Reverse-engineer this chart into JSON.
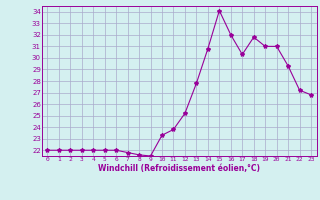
{
  "x": [
    0,
    1,
    2,
    3,
    4,
    5,
    6,
    7,
    8,
    9,
    10,
    11,
    12,
    13,
    14,
    15,
    16,
    17,
    18,
    19,
    20,
    21,
    22,
    23
  ],
  "y": [
    22,
    22,
    22,
    22,
    22,
    22,
    22,
    21.8,
    21.6,
    21.5,
    23.3,
    23.8,
    25.2,
    27.8,
    30.8,
    34.1,
    32.0,
    30.3,
    31.8,
    31.0,
    31.0,
    29.3,
    27.2,
    26.8
  ],
  "line_color": "#990099",
  "marker": "*",
  "marker_size": 3,
  "bg_color": "#d4f0f0",
  "grid_color": "#aaaacc",
  "xlabel": "Windchill (Refroidissement éolien,°C)",
  "ylim": [
    21.5,
    34.5
  ],
  "xlim": [
    -0.5,
    23.5
  ],
  "yticks": [
    22,
    23,
    24,
    25,
    26,
    27,
    28,
    29,
    30,
    31,
    32,
    33,
    34
  ],
  "xtick_labels": [
    "0",
    "1",
    "2",
    "3",
    "4",
    "5",
    "6",
    "7",
    "8",
    "9",
    "10",
    "11",
    "12",
    "13",
    "14",
    "15",
    "16",
    "17",
    "18",
    "19",
    "20",
    "21",
    "22",
    "23"
  ]
}
